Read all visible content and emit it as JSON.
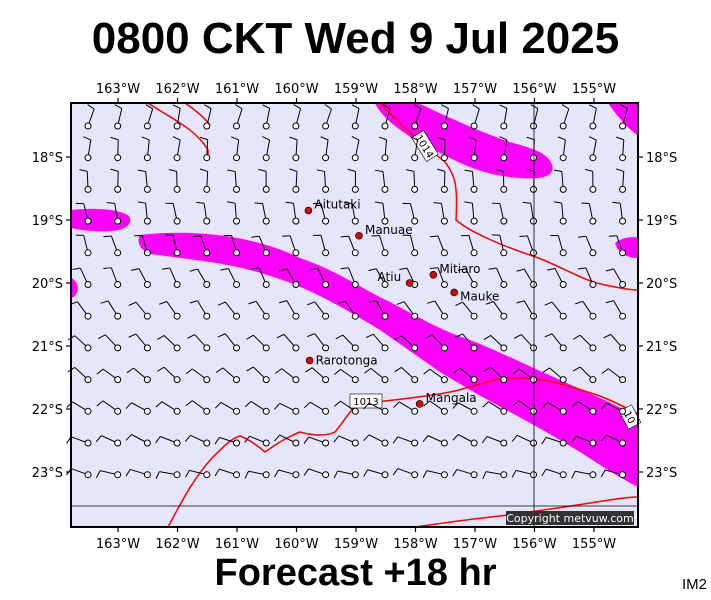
{
  "header": {
    "title": "0800 CKT Wed 9 Jul 2025"
  },
  "footer": {
    "forecast": "Forecast +18 hr",
    "code": "IM2"
  },
  "map": {
    "lon_labels": [
      "163°W",
      "162°W",
      "161°W",
      "160°W",
      "159°W",
      "158°W",
      "157°W",
      "156°W",
      "155°W"
    ],
    "lat_labels": [
      "18°S",
      "19°S",
      "20°S",
      "21°S",
      "22°S",
      "23°S"
    ],
    "places": [
      {
        "name": "Aitutaki",
        "lon": -159.8,
        "lat": -18.85
      },
      {
        "name": "Manuae",
        "lon": -158.95,
        "lat": -19.25
      },
      {
        "name": "Atiu",
        "lon": -158.1,
        "lat": -20.0
      },
      {
        "name": "Mitiaro",
        "lon": -157.7,
        "lat": -19.87
      },
      {
        "name": "Mauke",
        "lon": -157.35,
        "lat": -20.15
      },
      {
        "name": "Rarotonga",
        "lon": -159.78,
        "lat": -21.23
      },
      {
        "name": "Mangala",
        "lon": -157.93,
        "lat": -21.92
      }
    ],
    "isobars": [
      "1014",
      "1013",
      "10"
    ],
    "copyright": "Copyright metvuw.com",
    "colors": {
      "background": "#e6e6fa",
      "rain": "#ff00ff",
      "isobar": "#ff0000"
    }
  }
}
